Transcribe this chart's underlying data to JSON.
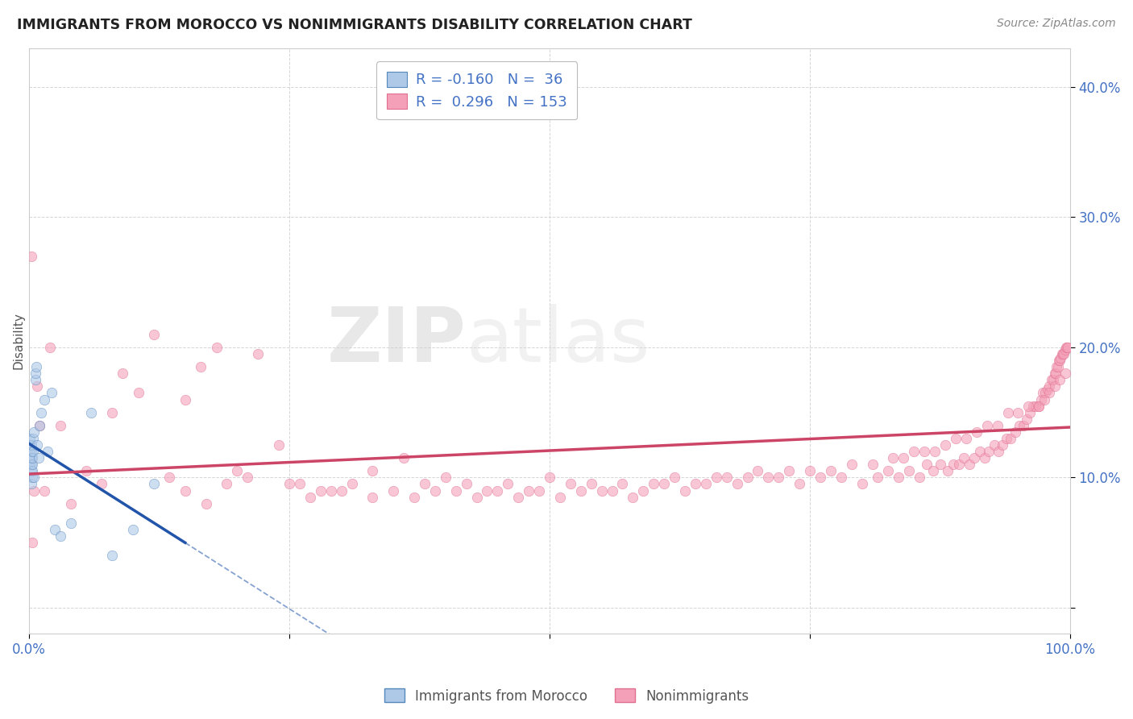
{
  "title": "IMMIGRANTS FROM MOROCCO VS NONIMMIGRANTS DISABILITY CORRELATION CHART",
  "source_text": "Source: ZipAtlas.com",
  "ylabel": "Disability",
  "watermark_zip": "ZIP",
  "watermark_atlas": "atlas",
  "xlim": [
    0.0,
    1.0
  ],
  "ylim": [
    -0.02,
    0.43
  ],
  "ytick_vals": [
    0.0,
    0.1,
    0.2,
    0.3,
    0.4
  ],
  "ytick_labels": [
    "",
    "10.0%",
    "20.0%",
    "30.0%",
    "40.0%"
  ],
  "xtick_vals": [
    0.0,
    0.25,
    0.5,
    0.75,
    1.0
  ],
  "xtick_labels": [
    "0.0%",
    "",
    "",
    "",
    "100.0%"
  ],
  "legend_R1": "-0.160",
  "legend_N1": "36",
  "legend_R2": "0.296",
  "legend_N2": "153",
  "blue_fill": "#aec8e8",
  "blue_edge": "#5588bb",
  "pink_fill": "#f4a0b8",
  "pink_edge": "#e07090",
  "blue_line_color": "#2255aa",
  "pink_line_color": "#cc4466",
  "grid_color": "#cccccc",
  "bg_color": "#ffffff",
  "tick_color": "#4472c4",
  "title_color": "#222222",
  "source_color": "#888888",
  "ylabel_color": "#555555",
  "blue_scatter_x": [
    0.001,
    0.001,
    0.001,
    0.001,
    0.001,
    0.002,
    0.002,
    0.002,
    0.002,
    0.002,
    0.002,
    0.003,
    0.003,
    0.003,
    0.003,
    0.004,
    0.004,
    0.005,
    0.005,
    0.006,
    0.006,
    0.007,
    0.008,
    0.009,
    0.01,
    0.012,
    0.015,
    0.018,
    0.022,
    0.025,
    0.03,
    0.04,
    0.06,
    0.08,
    0.1,
    0.12
  ],
  "blue_scatter_y": [
    0.11,
    0.115,
    0.12,
    0.125,
    0.13,
    0.105,
    0.11,
    0.115,
    0.12,
    0.125,
    0.095,
    0.1,
    0.105,
    0.11,
    0.115,
    0.13,
    0.12,
    0.1,
    0.135,
    0.175,
    0.18,
    0.185,
    0.125,
    0.115,
    0.14,
    0.15,
    0.16,
    0.12,
    0.165,
    0.06,
    0.055,
    0.065,
    0.15,
    0.04,
    0.06,
    0.095
  ],
  "pink_scatter_x": [
    0.002,
    0.003,
    0.005,
    0.008,
    0.01,
    0.015,
    0.02,
    0.03,
    0.04,
    0.055,
    0.07,
    0.08,
    0.09,
    0.105,
    0.12,
    0.135,
    0.15,
    0.165,
    0.18,
    0.2,
    0.22,
    0.24,
    0.26,
    0.28,
    0.3,
    0.33,
    0.36,
    0.38,
    0.4,
    0.42,
    0.44,
    0.46,
    0.48,
    0.5,
    0.52,
    0.54,
    0.56,
    0.58,
    0.6,
    0.62,
    0.64,
    0.66,
    0.68,
    0.7,
    0.72,
    0.74,
    0.76,
    0.78,
    0.8,
    0.815,
    0.825,
    0.835,
    0.845,
    0.855,
    0.862,
    0.868,
    0.875,
    0.882,
    0.888,
    0.893,
    0.898,
    0.903,
    0.908,
    0.913,
    0.918,
    0.922,
    0.927,
    0.931,
    0.935,
    0.939,
    0.943,
    0.947,
    0.951,
    0.955,
    0.958,
    0.961,
    0.964,
    0.967,
    0.97,
    0.972,
    0.974,
    0.976,
    0.978,
    0.98,
    0.982,
    0.984,
    0.985,
    0.986,
    0.987,
    0.988,
    0.989,
    0.99,
    0.991,
    0.992,
    0.993,
    0.994,
    0.995,
    0.996,
    0.997,
    0.998,
    0.15,
    0.17,
    0.19,
    0.21,
    0.25,
    0.27,
    0.29,
    0.31,
    0.33,
    0.35,
    0.37,
    0.39,
    0.41,
    0.43,
    0.45,
    0.47,
    0.49,
    0.51,
    0.53,
    0.55,
    0.57,
    0.59,
    0.61,
    0.63,
    0.65,
    0.67,
    0.69,
    0.71,
    0.73,
    0.75,
    0.77,
    0.79,
    0.81,
    0.83,
    0.84,
    0.85,
    0.86,
    0.87,
    0.88,
    0.89,
    0.9,
    0.91,
    0.92,
    0.93,
    0.94,
    0.95,
    0.96,
    0.97,
    0.975,
    0.98,
    0.985,
    0.99,
    0.995
  ],
  "pink_scatter_y": [
    0.27,
    0.05,
    0.09,
    0.17,
    0.14,
    0.09,
    0.2,
    0.14,
    0.08,
    0.105,
    0.095,
    0.15,
    0.18,
    0.165,
    0.21,
    0.1,
    0.16,
    0.185,
    0.2,
    0.105,
    0.195,
    0.125,
    0.095,
    0.09,
    0.09,
    0.105,
    0.115,
    0.095,
    0.1,
    0.095,
    0.09,
    0.095,
    0.09,
    0.1,
    0.095,
    0.095,
    0.09,
    0.085,
    0.095,
    0.1,
    0.095,
    0.1,
    0.095,
    0.105,
    0.1,
    0.095,
    0.1,
    0.1,
    0.095,
    0.1,
    0.105,
    0.1,
    0.105,
    0.1,
    0.11,
    0.105,
    0.11,
    0.105,
    0.11,
    0.11,
    0.115,
    0.11,
    0.115,
    0.12,
    0.115,
    0.12,
    0.125,
    0.12,
    0.125,
    0.13,
    0.13,
    0.135,
    0.14,
    0.14,
    0.145,
    0.15,
    0.155,
    0.155,
    0.155,
    0.16,
    0.165,
    0.165,
    0.168,
    0.17,
    0.175,
    0.175,
    0.18,
    0.18,
    0.185,
    0.185,
    0.19,
    0.19,
    0.192,
    0.195,
    0.195,
    0.195,
    0.198,
    0.2,
    0.2,
    0.2,
    0.09,
    0.08,
    0.095,
    0.1,
    0.095,
    0.085,
    0.09,
    0.095,
    0.085,
    0.09,
    0.085,
    0.09,
    0.09,
    0.085,
    0.09,
    0.085,
    0.09,
    0.085,
    0.09,
    0.09,
    0.095,
    0.09,
    0.095,
    0.09,
    0.095,
    0.1,
    0.1,
    0.1,
    0.105,
    0.105,
    0.105,
    0.11,
    0.11,
    0.115,
    0.115,
    0.12,
    0.12,
    0.12,
    0.125,
    0.13,
    0.13,
    0.135,
    0.14,
    0.14,
    0.15,
    0.15,
    0.155,
    0.155,
    0.16,
    0.165,
    0.17,
    0.175,
    0.18
  ]
}
